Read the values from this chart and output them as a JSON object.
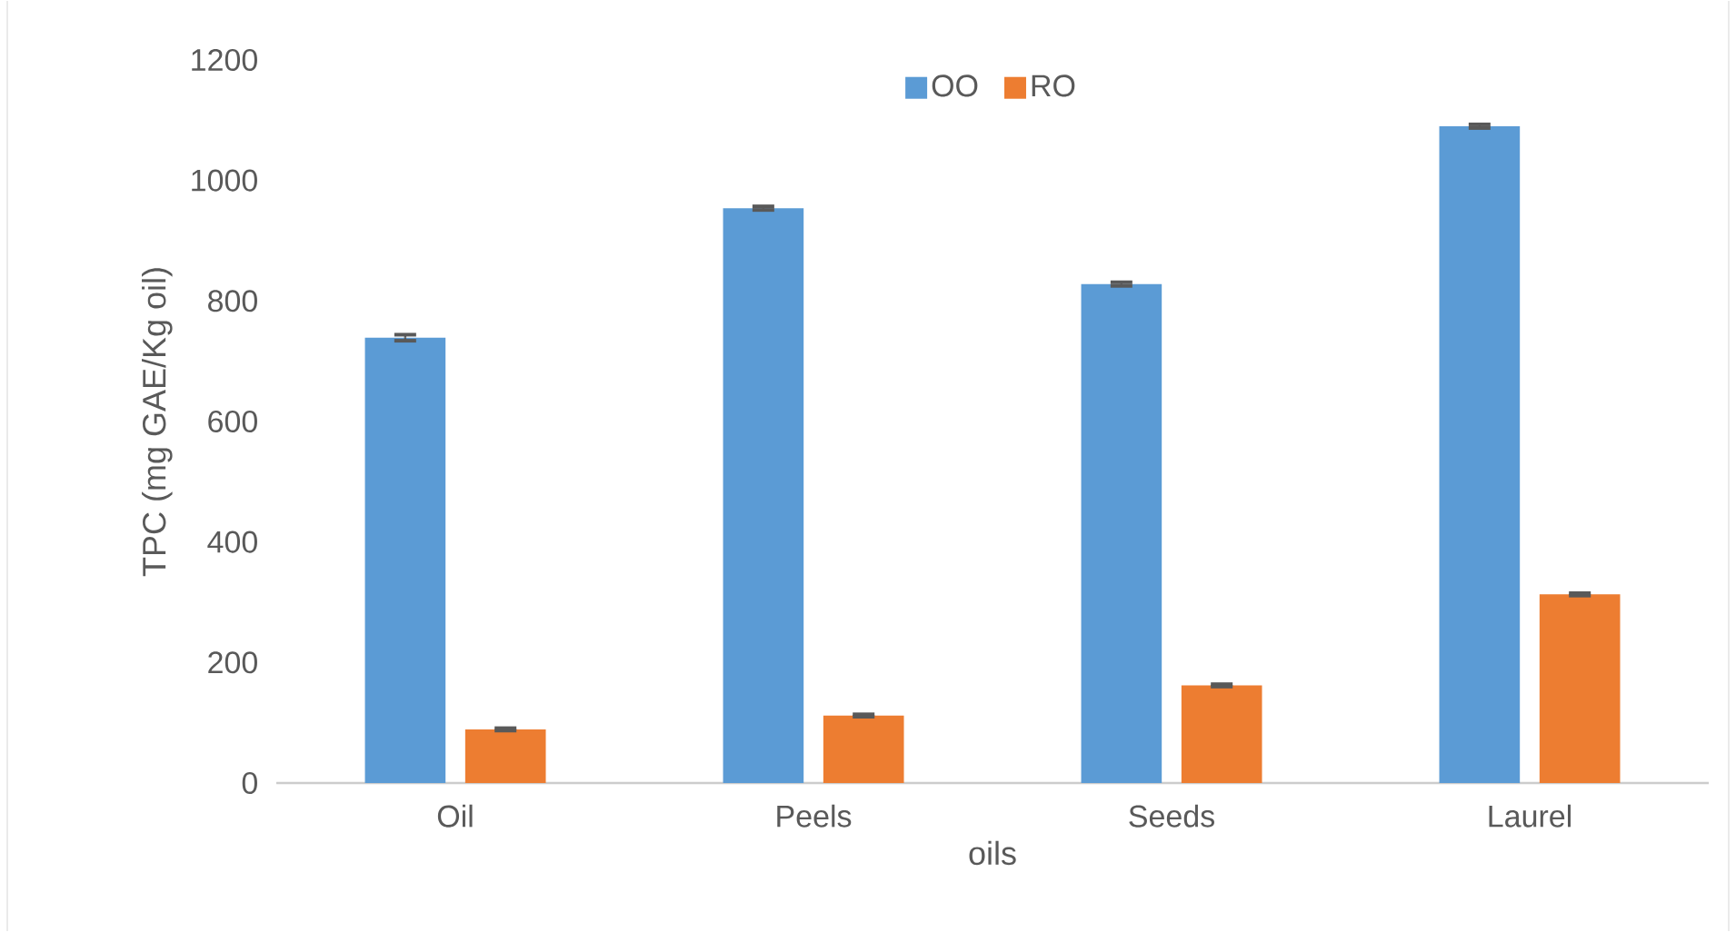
{
  "chart_data": {
    "type": "bar",
    "xlabel": "oils",
    "ylabel": "TPC (mg GAE/Kg oil)",
    "categories": [
      "Oil",
      "Peels",
      "Seeds",
      "Laurel"
    ],
    "series": [
      {
        "name": "OO",
        "color": "#5b9bd5",
        "values": [
          739,
          954,
          828,
          1090
        ],
        "errors": [
          5,
          3,
          3,
          3
        ]
      },
      {
        "name": "RO",
        "color": "#ed7d31",
        "values": [
          89,
          112,
          162,
          313
        ],
        "errors": [
          2,
          2,
          2,
          2
        ]
      }
    ],
    "ylim": [
      0,
      1200
    ],
    "yticks": [
      0,
      200,
      400,
      600,
      800,
      1000,
      1200
    ],
    "grid": false,
    "legend": "top"
  }
}
